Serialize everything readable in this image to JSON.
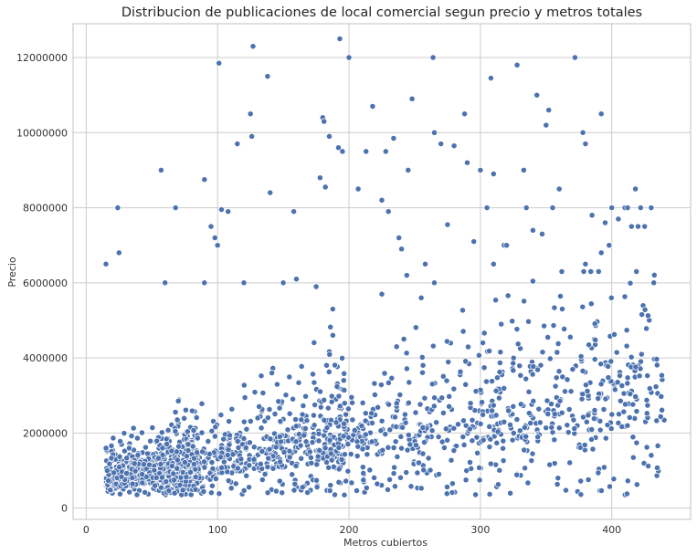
{
  "chart_data": {
    "type": "scatter",
    "title": "Distribucion de publicaciones de local comercial segun precio y metros totales",
    "xlabel": "Metros cubiertos",
    "ylabel": "Precio",
    "xlim": [
      -10,
      460
    ],
    "ylim": [
      -300000,
      12900000
    ],
    "xticks": [
      0,
      100,
      200,
      300,
      400
    ],
    "yticks": [
      0,
      2000000,
      4000000,
      6000000,
      8000000,
      10000000,
      12000000
    ],
    "ytick_labels": [
      "0",
      "2000000",
      "4000000",
      "6000000",
      "8000000",
      "10000000",
      "12000000"
    ],
    "grid": true,
    "marker_color": "#4c72b0",
    "points": [
      [
        15,
        6500000
      ],
      [
        24,
        8000000
      ],
      [
        25,
        6800000
      ],
      [
        57,
        9000000
      ],
      [
        68,
        8000000
      ],
      [
        90,
        8750000
      ],
      [
        95,
        7500000
      ],
      [
        98,
        7200000
      ],
      [
        100,
        7000000
      ],
      [
        101,
        11850000
      ],
      [
        103,
        7950000
      ],
      [
        108,
        7900000
      ],
      [
        115,
        9700000
      ],
      [
        125,
        10500000
      ],
      [
        126,
        9900000
      ],
      [
        127,
        12300000
      ],
      [
        138,
        11500000
      ],
      [
        140,
        8400000
      ],
      [
        158,
        7900000
      ],
      [
        178,
        8800000
      ],
      [
        180,
        10400000
      ],
      [
        181,
        10300000
      ],
      [
        182,
        8550000
      ],
      [
        185,
        9900000
      ],
      [
        192,
        9600000
      ],
      [
        193,
        12500000
      ],
      [
        195,
        9500000
      ],
      [
        200,
        12000000
      ],
      [
        207,
        8500000
      ],
      [
        213,
        9500000
      ],
      [
        218,
        10700000
      ],
      [
        225,
        8200000
      ],
      [
        228,
        9500000
      ],
      [
        230,
        7900000
      ],
      [
        234,
        9850000
      ],
      [
        238,
        7200000
      ],
      [
        240,
        6900000
      ],
      [
        245,
        9000000
      ],
      [
        248,
        10900000
      ],
      [
        258,
        6500000
      ],
      [
        264,
        12000000
      ],
      [
        265,
        10000000
      ],
      [
        270,
        9700000
      ],
      [
        275,
        7550000
      ],
      [
        280,
        9650000
      ],
      [
        288,
        10500000
      ],
      [
        290,
        9200000
      ],
      [
        295,
        7100000
      ],
      [
        300,
        9000000
      ],
      [
        305,
        8000000
      ],
      [
        308,
        11450000
      ],
      [
        310,
        8900000
      ],
      [
        318,
        7000000
      ],
      [
        320,
        7000000
      ],
      [
        328,
        11800000
      ],
      [
        333,
        9000000
      ],
      [
        335,
        8000000
      ],
      [
        340,
        7400000
      ],
      [
        343,
        11000000
      ],
      [
        347,
        7300000
      ],
      [
        350,
        10200000
      ],
      [
        352,
        10600000
      ],
      [
        355,
        8000000
      ],
      [
        360,
        8500000
      ],
      [
        372,
        12000000
      ],
      [
        378,
        10000000
      ],
      [
        380,
        9700000
      ],
      [
        385,
        7800000
      ],
      [
        392,
        10500000
      ],
      [
        395,
        7600000
      ],
      [
        398,
        7000000
      ],
      [
        400,
        8000000
      ],
      [
        405,
        7700000
      ],
      [
        410,
        8000000
      ],
      [
        412,
        8000000
      ],
      [
        415,
        7500000
      ],
      [
        418,
        8500000
      ],
      [
        420,
        7500000
      ],
      [
        422,
        8000000
      ],
      [
        425,
        7500000
      ],
      [
        430,
        8000000
      ],
      [
        432,
        6000000
      ],
      [
        310,
        6500000
      ],
      [
        265,
        6000000
      ],
      [
        244,
        6200000
      ],
      [
        175,
        5900000
      ],
      [
        160,
        6100000
      ],
      [
        150,
        6000000
      ],
      [
        120,
        6000000
      ],
      [
        90,
        6000000
      ],
      [
        60,
        6000000
      ],
      [
        225,
        5700000
      ],
      [
        255,
        5600000
      ],
      [
        362,
        6300000
      ],
      [
        380,
        6500000
      ],
      [
        392,
        6800000
      ]
    ]
  }
}
